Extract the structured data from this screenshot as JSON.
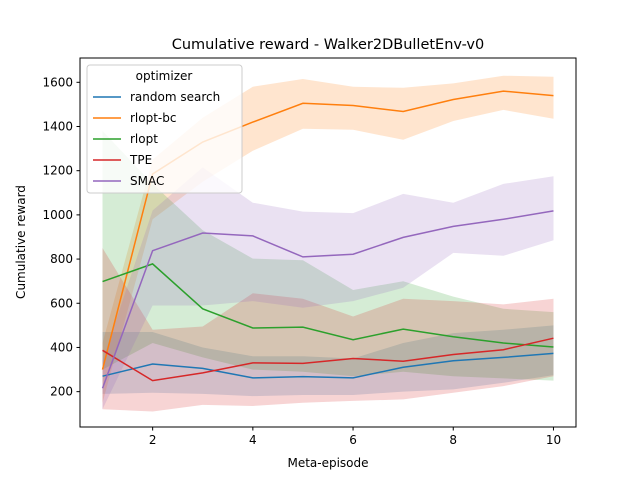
{
  "chart_data": {
    "type": "line",
    "title": "Cumulative reward - Walker2DBulletEnv-v0",
    "xlabel": "Meta-episode",
    "ylabel": "Cumulative reward",
    "xlim": [
      0.55,
      10.45
    ],
    "ylim": [
      40,
      1710
    ],
    "xticks": [
      2,
      4,
      6,
      8,
      10
    ],
    "yticks": [
      200,
      400,
      600,
      800,
      1000,
      1200,
      1400,
      1600
    ],
    "grid": false,
    "legend": {
      "title": "optimizer",
      "placement": "top-left"
    },
    "x": [
      1,
      2,
      3,
      4,
      5,
      6,
      7,
      8,
      9,
      10
    ],
    "series": [
      {
        "name": "random search",
        "color": "#1f77b4",
        "values": [
          270,
          325,
          305,
          262,
          268,
          262,
          310,
          340,
          355,
          373
        ],
        "lower": [
          190,
          195,
          190,
          180,
          185,
          185,
          200,
          210,
          240,
          275
        ],
        "upper": [
          470,
          470,
          400,
          360,
          360,
          350,
          420,
          465,
          480,
          500
        ]
      },
      {
        "name": "rlopt-bc",
        "color": "#ff7f0e",
        "values": [
          300,
          1185,
          1330,
          1420,
          1505,
          1495,
          1468,
          1522,
          1560,
          1540
        ],
        "lower": [
          150,
          980,
          1150,
          1290,
          1390,
          1385,
          1340,
          1425,
          1475,
          1435
        ],
        "upper": [
          420,
          1250,
          1440,
          1580,
          1615,
          1580,
          1575,
          1595,
          1630,
          1625
        ]
      },
      {
        "name": "rlopt",
        "color": "#2ca02c",
        "values": [
          698,
          778,
          575,
          488,
          492,
          435,
          483,
          448,
          420,
          402
        ],
        "lower": [
          300,
          420,
          355,
          300,
          290,
          270,
          290,
          270,
          260,
          250
        ],
        "upper": [
          1380,
          1140,
          930,
          802,
          795,
          660,
          700,
          630,
          575,
          560
        ]
      },
      {
        "name": "TPE",
        "color": "#d62728",
        "values": [
          387,
          250,
          285,
          330,
          328,
          350,
          338,
          368,
          390,
          442
        ],
        "lower": [
          120,
          110,
          140,
          135,
          150,
          158,
          165,
          195,
          225,
          270
        ],
        "upper": [
          850,
          480,
          495,
          645,
          620,
          540,
          620,
          610,
          595,
          620
        ]
      },
      {
        "name": "SMAC",
        "color": "#9467bd",
        "values": [
          215,
          838,
          918,
          905,
          810,
          822,
          898,
          948,
          980,
          1018
        ],
        "lower": [
          120,
          590,
          590,
          610,
          580,
          610,
          670,
          828,
          815,
          885
        ],
        "upper": [
          340,
          1020,
          1215,
          1055,
          1015,
          1008,
          1095,
          1055,
          1140,
          1175
        ]
      }
    ]
  }
}
